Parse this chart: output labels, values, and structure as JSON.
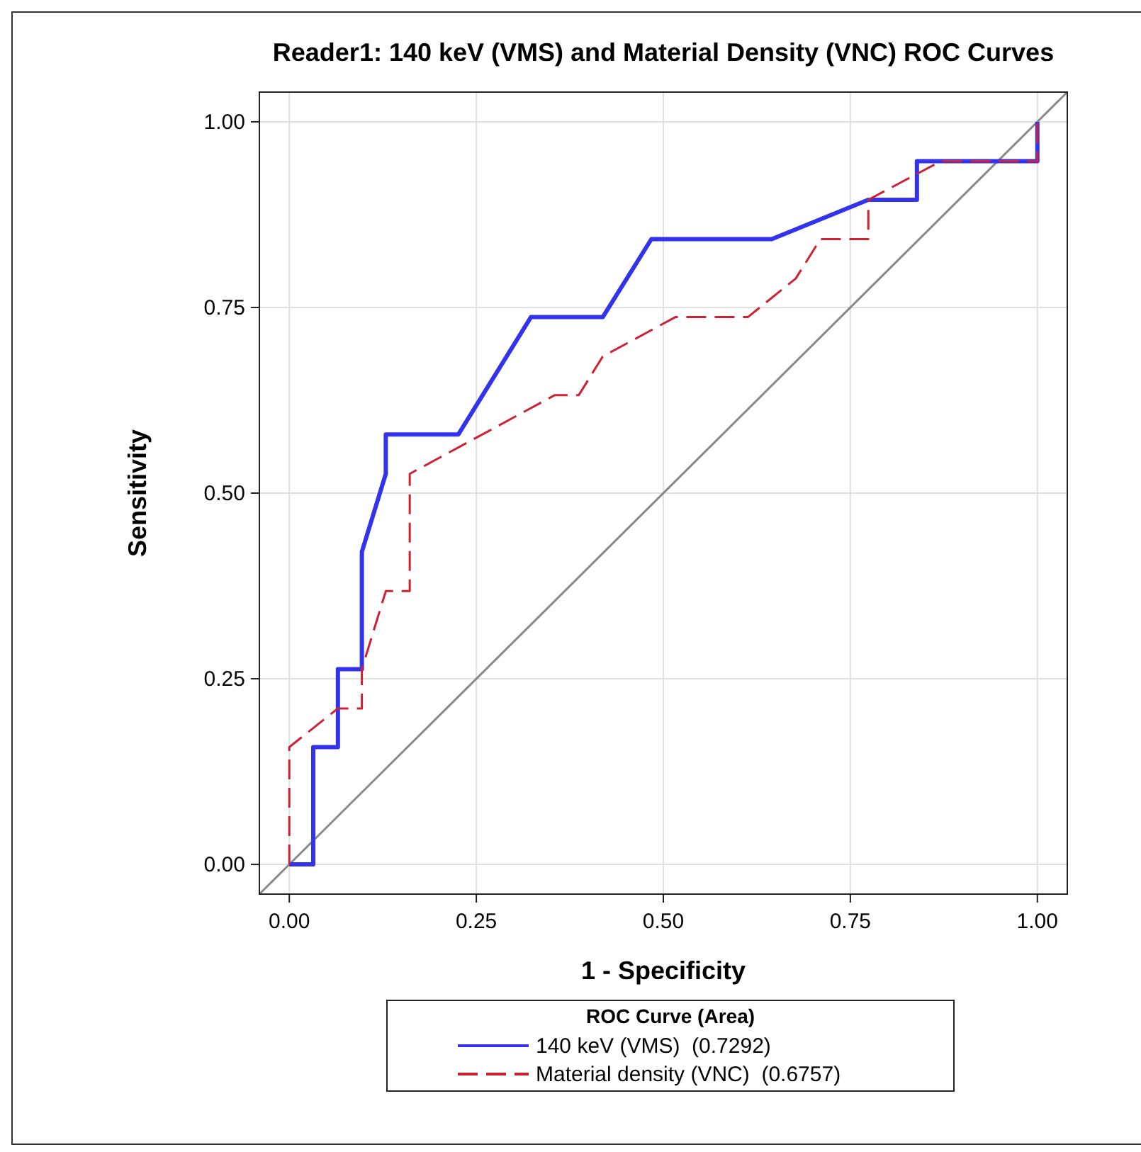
{
  "chart_data": {
    "type": "line",
    "title": "Reader1: 140 keV (VMS) and Material Density (VNC) ROC Curves",
    "xlabel": "1 - Specificity",
    "ylabel": "Sensitivity",
    "legend_title": "ROC Curve (Area)",
    "legend": "bottom",
    "grid": true,
    "xlim": [
      -0.04,
      1.04
    ],
    "ylim": [
      -0.04,
      1.04
    ],
    "xticks": [
      {
        "value": 0,
        "label": "0.00"
      },
      {
        "value": 0.25,
        "label": "0.25"
      },
      {
        "value": 0.5,
        "label": "0.50"
      },
      {
        "value": 0.75,
        "label": "0.75"
      },
      {
        "value": 1,
        "label": "1.00"
      }
    ],
    "yticks": [
      {
        "value": 0,
        "label": "0.00"
      },
      {
        "value": 0.25,
        "label": "0.25"
      },
      {
        "value": 0.5,
        "label": "0.50"
      },
      {
        "value": 0.75,
        "label": "0.75"
      },
      {
        "value": 1,
        "label": "1.00"
      }
    ],
    "series": [
      {
        "color": "#888888",
        "line_style": "solid",
        "x": [
          -0.04,
          1.04
        ],
        "values": [
          -0.04,
          1.04
        ]
      },
      {
        "name": "140 keV (VMS)  (0.7292)",
        "color": "#3333ee",
        "line_style": "solid",
        "x": [
          0,
          0.032,
          0.032,
          0.065,
          0.065,
          0.097,
          0.097,
          0.129,
          0.129,
          0.226,
          0.323,
          0.419,
          0.484,
          0.645,
          0.774,
          0.839,
          0.839,
          1,
          1
        ],
        "values": [
          0,
          0,
          0.158,
          0.158,
          0.263,
          0.263,
          0.421,
          0.526,
          0.579,
          0.579,
          0.737,
          0.737,
          0.842,
          0.842,
          0.895,
          0.895,
          0.947,
          0.947,
          1
        ]
      },
      {
        "name": "Material density (VNC)  (0.6757)",
        "color": "#cc2233",
        "line_style": "dashed",
        "x": [
          0,
          0,
          0.065,
          0.097,
          0.097,
          0.129,
          0.161,
          0.161,
          0.355,
          0.387,
          0.419,
          0.516,
          0.613,
          0.677,
          0.71,
          0.774,
          0.774,
          0.871,
          1,
          1
        ],
        "values": [
          0,
          0.158,
          0.21,
          0.21,
          0.263,
          0.368,
          0.368,
          0.526,
          0.632,
          0.632,
          0.684,
          0.737,
          0.737,
          0.789,
          0.842,
          0.842,
          0.895,
          0.947,
          0.947,
          1
        ]
      }
    ]
  }
}
